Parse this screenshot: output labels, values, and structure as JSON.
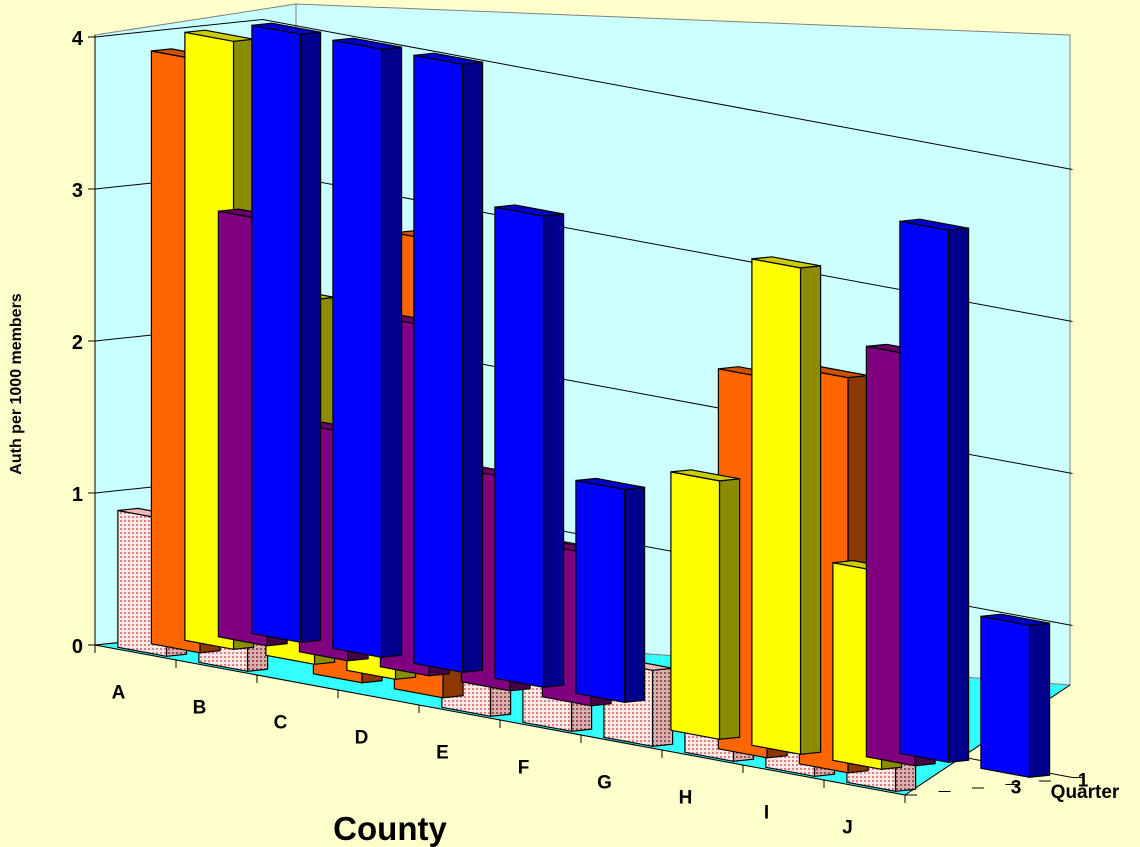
{
  "chart_data": {
    "type": "bar",
    "subtype": "3d-column",
    "title": "",
    "xlabel": "County",
    "ylabel": "Auth per 1000 members",
    "zlabel": "Quarter",
    "categories": [
      "A",
      "B",
      "C",
      "D",
      "E",
      "F",
      "G",
      "H",
      "I",
      "J"
    ],
    "z_tick_labels": [
      "1",
      "3"
    ],
    "ylim": [
      0,
      4
    ],
    "y_ticks": [
      "0",
      "1",
      "2",
      "3",
      "4"
    ],
    "grid": true,
    "series": [
      {
        "quarter": 1,
        "color": "#0000FF",
        "values": [
          4.0,
          4.0,
          4.0,
          3.1,
          1.4,
          0.0,
          0.0,
          0.0,
          3.5,
          1.0
        ]
      },
      {
        "quarter": 2,
        "color": "#800080",
        "values": [
          2.8,
          1.5,
          2.3,
          1.4,
          1.0,
          0.0,
          0.0,
          0.0,
          2.7,
          0.0
        ]
      },
      {
        "quarter": 3,
        "color": "#FFFF00",
        "values": [
          4.0,
          2.4,
          2.0,
          0.0,
          0.0,
          0.0,
          1.7,
          3.2,
          1.3,
          0.0
        ]
      },
      {
        "quarter": 4,
        "color": "#FF6600",
        "values": [
          3.9,
          0.0,
          1.5,
          3.0,
          0.0,
          0.0,
          0.0,
          2.5,
          2.6,
          0.0
        ]
      },
      {
        "quarter": 5,
        "color": "#FFD9D9",
        "pattern": "dotted",
        "values": [
          0.9,
          1.1,
          0.0,
          0.0,
          1.0,
          1.2,
          0.5,
          0.8,
          1.3,
          1.2
        ]
      }
    ]
  }
}
